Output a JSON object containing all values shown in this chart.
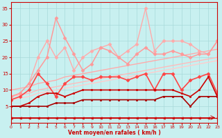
{
  "xlabel": "Vent moyen/en rafales ( km/h )",
  "xlim": [
    0,
    23
  ],
  "ylim": [
    0,
    37
  ],
  "yticks": [
    5,
    10,
    15,
    20,
    25,
    30,
    35
  ],
  "xticks": [
    0,
    1,
    2,
    3,
    4,
    5,
    6,
    7,
    8,
    9,
    10,
    11,
    12,
    13,
    14,
    15,
    16,
    17,
    18,
    19,
    20,
    21,
    22,
    23
  ],
  "bg_color": "#c8f0f0",
  "grid_color": "#a8dada",
  "series": [
    {
      "x": [
        0,
        1,
        2,
        3,
        4,
        5,
        6,
        7,
        8,
        9,
        10,
        11,
        12,
        13,
        14,
        15,
        16,
        17,
        18,
        19,
        20,
        21,
        22,
        23
      ],
      "y": [
        7,
        7.5,
        8,
        9,
        9.5,
        10,
        10.5,
        11,
        11.5,
        12,
        12.5,
        13,
        13.5,
        14,
        14.5,
        15,
        15.5,
        16,
        16.5,
        17,
        17.5,
        18,
        18.5,
        19
      ],
      "color": "#ffcccc",
      "linewidth": 1.0,
      "marker": null,
      "markersize": 0
    },
    {
      "x": [
        0,
        1,
        2,
        3,
        4,
        5,
        6,
        7,
        8,
        9,
        10,
        11,
        12,
        13,
        14,
        15,
        16,
        17,
        18,
        19,
        20,
        21,
        22,
        23
      ],
      "y": [
        8,
        8.5,
        9,
        10,
        10.5,
        11,
        11.5,
        12,
        12.5,
        13,
        13.5,
        14,
        14.5,
        15,
        15.5,
        16,
        16.5,
        17,
        17.5,
        18,
        18.5,
        19,
        19.5,
        20
      ],
      "color": "#ffbbbb",
      "linewidth": 1.0,
      "marker": null,
      "markersize": 0
    },
    {
      "x": [
        0,
        1,
        2,
        3,
        4,
        5,
        6,
        7,
        8,
        9,
        10,
        11,
        12,
        13,
        14,
        15,
        16,
        17,
        18,
        19,
        20,
        21,
        22,
        23
      ],
      "y": [
        10,
        10.5,
        11,
        12,
        12.5,
        13,
        14,
        14.5,
        15,
        15.5,
        16,
        16.5,
        17,
        17.5,
        18,
        18.5,
        19,
        19.5,
        20,
        20.5,
        21,
        21.5,
        22,
        22.5
      ],
      "color": "#ffaaaa",
      "linewidth": 1.0,
      "marker": null,
      "markersize": 0
    },
    {
      "x": [
        0,
        1,
        2,
        3,
        4,
        5,
        6,
        7,
        8,
        9,
        10,
        11,
        12,
        13,
        14,
        15,
        16,
        17,
        18,
        19,
        20,
        21,
        22,
        23
      ],
      "y": [
        8,
        9,
        12,
        20,
        25,
        20,
        23,
        16,
        20,
        22,
        23,
        24,
        20,
        22,
        24,
        35,
        22,
        25,
        25,
        25,
        24,
        22,
        21,
        25
      ],
      "color": "#ffaaaa",
      "linewidth": 1.0,
      "marker": "D",
      "markersize": 2.5
    },
    {
      "x": [
        0,
        1,
        2,
        3,
        4,
        5,
        6,
        7,
        8,
        9,
        10,
        11,
        12,
        13,
        14,
        15,
        16,
        17,
        18,
        19,
        20,
        21,
        22,
        23
      ],
      "y": [
        8,
        9,
        12,
        16,
        20,
        32,
        26,
        21,
        16,
        18,
        23,
        22,
        20,
        18,
        21,
        23,
        21,
        21,
        22,
        21,
        20,
        21,
        21,
        25
      ],
      "color": "#ff9999",
      "linewidth": 1.1,
      "marker": "D",
      "markersize": 2.5
    },
    {
      "x": [
        0,
        1,
        2,
        3,
        4,
        5,
        6,
        7,
        8,
        9,
        10,
        11,
        12,
        13,
        14,
        15,
        16,
        17,
        18,
        19,
        20,
        21,
        22,
        23
      ],
      "y": [
        7,
        8,
        10,
        15,
        12,
        8,
        12,
        14,
        14,
        13,
        14,
        14,
        14,
        13,
        14,
        15,
        10,
        15,
        15,
        10,
        13,
        14,
        15,
        9
      ],
      "color": "#ff4444",
      "linewidth": 1.2,
      "marker": "D",
      "markersize": 2.5
    },
    {
      "x": [
        0,
        1,
        2,
        3,
        4,
        5,
        6,
        7,
        8,
        9,
        10,
        11,
        12,
        13,
        14,
        15,
        16,
        17,
        18,
        19,
        20,
        21,
        22,
        23
      ],
      "y": [
        5,
        5,
        6,
        8,
        9,
        9,
        8,
        9,
        10,
        10,
        10,
        10,
        10,
        10,
        10,
        10,
        10,
        10,
        10,
        9,
        8,
        10,
        14,
        8
      ],
      "color": "#cc0000",
      "linewidth": 1.2,
      "marker": "s",
      "markersize": 2
    },
    {
      "x": [
        0,
        1,
        2,
        3,
        4,
        5,
        6,
        7,
        8,
        9,
        10,
        11,
        12,
        13,
        14,
        15,
        16,
        17,
        18,
        19,
        20,
        21,
        22,
        23
      ],
      "y": [
        5,
        5,
        5,
        5,
        5,
        6,
        6,
        6,
        7,
        7,
        7,
        7,
        7,
        7,
        7,
        7,
        7,
        8,
        8,
        8,
        5,
        8,
        8,
        8
      ],
      "color": "#aa0000",
      "linewidth": 1.2,
      "marker": "s",
      "markersize": 2
    },
    {
      "x": [
        0,
        1,
        2,
        3,
        4,
        5,
        6,
        7,
        8,
        9,
        10,
        11,
        12,
        13,
        14,
        15,
        16,
        17,
        18,
        19,
        20,
        21,
        22,
        23
      ],
      "y": [
        1.5,
        1.5,
        1.5,
        1.5,
        1.5,
        1.5,
        1.5,
        1.5,
        1.5,
        1.5,
        1.5,
        1.5,
        1.5,
        1.5,
        1.5,
        1.5,
        1.5,
        1.5,
        1.5,
        1.5,
        1.5,
        1.5,
        1.5,
        1.5
      ],
      "color": "#cc0000",
      "linewidth": 0.8,
      "marker": "<",
      "markersize": 2.5
    }
  ]
}
